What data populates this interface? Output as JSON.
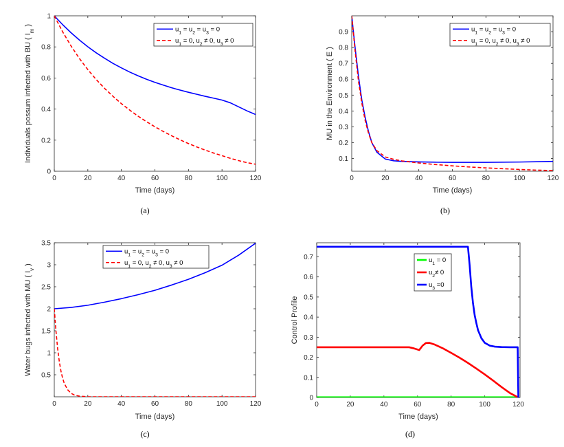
{
  "chart_data": [
    {
      "panel": "a",
      "type": "line",
      "caption": "(a)",
      "xlabel": "Time (days)",
      "ylabel": "Individuals possum infected with BU ( I",
      "ylabel_sub": "m",
      "ylabel_close": " )",
      "xlim": [
        0,
        120
      ],
      "ylim": [
        0,
        1
      ],
      "xticks": [
        0,
        20,
        40,
        60,
        80,
        100,
        120
      ],
      "yticks": [
        0,
        0.2,
        0.4,
        0.6,
        0.8,
        1
      ],
      "ytick_labels": [
        "0",
        "0.2",
        "0.4",
        "0.6",
        "0.8",
        "1"
      ],
      "legend_position": "top-right",
      "series": [
        {
          "name": "u1 = u2 = u3 = 0",
          "legend": [
            {
              "t": "u"
            },
            {
              "s": "1"
            },
            {
              "t": " = u"
            },
            {
              "s": "2"
            },
            {
              "t": " = u"
            },
            {
              "s": "3"
            },
            {
              "t": " = 0"
            }
          ],
          "color": "#0000ff",
          "dash": false,
          "x": [
            0,
            5,
            10,
            15,
            20,
            25,
            30,
            35,
            40,
            45,
            50,
            55,
            60,
            65,
            70,
            75,
            80,
            85,
            90,
            95,
            100,
            105,
            110,
            115,
            120
          ],
          "y": [
            1.0,
            0.943,
            0.891,
            0.844,
            0.801,
            0.762,
            0.727,
            0.694,
            0.665,
            0.638,
            0.614,
            0.592,
            0.572,
            0.554,
            0.537,
            0.522,
            0.508,
            0.495,
            0.482,
            0.47,
            0.458,
            0.44,
            0.414,
            0.388,
            0.365
          ]
        },
        {
          "name": "u1 = 0, u2 ≠ 0, u3 ≠ 0",
          "legend": [
            {
              "t": "u"
            },
            {
              "s": "1"
            },
            {
              "t": " = 0, u"
            },
            {
              "s": "2"
            },
            {
              "t": " ≠  0, u"
            },
            {
              "s": "3"
            },
            {
              "t": " ≠ 0"
            }
          ],
          "color": "#ff0000",
          "dash": true,
          "x": [
            0,
            5,
            10,
            15,
            20,
            25,
            30,
            35,
            40,
            45,
            50,
            55,
            60,
            65,
            70,
            75,
            80,
            85,
            90,
            95,
            100,
            105,
            110,
            115,
            120
          ],
          "y": [
            1.0,
            0.897,
            0.806,
            0.725,
            0.654,
            0.59,
            0.533,
            0.482,
            0.435,
            0.393,
            0.354,
            0.319,
            0.286,
            0.256,
            0.228,
            0.202,
            0.178,
            0.156,
            0.136,
            0.117,
            0.1,
            0.083,
            0.068,
            0.055,
            0.045
          ]
        }
      ]
    },
    {
      "panel": "b",
      "type": "line",
      "caption": "(b)",
      "xlabel": "Time (days)",
      "ylabel": "MU in the Environment ( E )",
      "ylabel_sub": "",
      "ylabel_close": "",
      "xlim": [
        0,
        120
      ],
      "ylim": [
        0.02,
        1.0
      ],
      "xticks": [
        0,
        20,
        40,
        60,
        80,
        100,
        120
      ],
      "yticks": [
        0.1,
        0.2,
        0.3,
        0.4,
        0.5,
        0.6,
        0.7,
        0.8,
        0.9
      ],
      "ytick_labels": [
        "0.1",
        "0.2",
        "0.3",
        "0.4",
        "0.5",
        "0.6",
        "0.7",
        "0.8",
        "0.9"
      ],
      "legend_position": "top-right",
      "series": [
        {
          "name": "u1 = u2 = u3 = 0",
          "legend": [
            {
              "t": "u"
            },
            {
              "s": "1"
            },
            {
              "t": " = u"
            },
            {
              "s": "2"
            },
            {
              "t": " = u"
            },
            {
              "s": "3"
            },
            {
              "t": " = 0"
            }
          ],
          "color": "#0000ff",
          "dash": false,
          "x": [
            0,
            2,
            4,
            6,
            8,
            10,
            12,
            15,
            20,
            25,
            30,
            40,
            50,
            60,
            70,
            80,
            90,
            100,
            110,
            120
          ],
          "y": [
            1.0,
            0.8,
            0.62,
            0.47,
            0.36,
            0.27,
            0.2,
            0.14,
            0.097,
            0.086,
            0.082,
            0.079,
            0.077,
            0.076,
            0.076,
            0.076,
            0.077,
            0.078,
            0.08,
            0.082
          ]
        },
        {
          "name": "u1 = 0, u2 ≠ 0, u3 ≠ 0",
          "legend": [
            {
              "t": "u"
            },
            {
              "s": "1"
            },
            {
              "t": " = 0, u"
            },
            {
              "s": "2"
            },
            {
              "t": " ≠  0, u"
            },
            {
              "s": "3"
            },
            {
              "t": " ≠ 0"
            }
          ],
          "color": "#ff0000",
          "dash": true,
          "x": [
            0,
            2,
            4,
            6,
            8,
            10,
            12,
            15,
            20,
            25,
            30,
            40,
            50,
            60,
            70,
            80,
            90,
            100,
            110,
            120
          ],
          "y": [
            1.0,
            0.78,
            0.59,
            0.45,
            0.34,
            0.26,
            0.2,
            0.15,
            0.11,
            0.095,
            0.085,
            0.072,
            0.062,
            0.054,
            0.047,
            0.041,
            0.036,
            0.031,
            0.027,
            0.024
          ]
        }
      ]
    },
    {
      "panel": "c",
      "type": "line",
      "caption": "(c)",
      "xlabel": "Time (days)",
      "ylabel": "Water bugs infected with MU ( I",
      "ylabel_sub": "v",
      "ylabel_close": " )",
      "xlim": [
        0,
        120
      ],
      "ylim": [
        0,
        3.5
      ],
      "xticks": [
        0,
        20,
        40,
        60,
        80,
        100,
        120
      ],
      "yticks": [
        0.5,
        1,
        1.5,
        2,
        2.5,
        3,
        3.5
      ],
      "ytick_labels": [
        "0.5",
        "1",
        "1.5",
        "2",
        "2.5",
        "3",
        "3.5"
      ],
      "legend_position": "top-left",
      "series": [
        {
          "name": "u1 = u2 = u3 = 0",
          "legend": [
            {
              "t": "u"
            },
            {
              "s": "1"
            },
            {
              "t": " = u"
            },
            {
              "s": "2"
            },
            {
              "t": " = u"
            },
            {
              "s": "3"
            },
            {
              "t": " = 0"
            }
          ],
          "color": "#0000ff",
          "dash": false,
          "x": [
            0,
            10,
            20,
            30,
            40,
            50,
            60,
            70,
            80,
            90,
            100,
            110,
            120
          ],
          "y": [
            2.0,
            2.03,
            2.08,
            2.15,
            2.23,
            2.32,
            2.42,
            2.54,
            2.67,
            2.82,
            2.99,
            3.22,
            3.49
          ]
        },
        {
          "name": "u1 = 0, u2 ≠ 0, u3 ≠ 0",
          "legend": [
            {
              "t": "u"
            },
            {
              "s": "1"
            },
            {
              "t": " = 0, u"
            },
            {
              "s": "2"
            },
            {
              "t": " ≠  0, u"
            },
            {
              "s": "3"
            },
            {
              "t": " ≠ 0"
            }
          ],
          "color": "#ff0000",
          "dash": true,
          "x": [
            0,
            1,
            2,
            3,
            4,
            5,
            6,
            8,
            10,
            12,
            15,
            20,
            30,
            60,
            90,
            120
          ],
          "y": [
            2.0,
            1.5,
            1.1,
            0.8,
            0.58,
            0.42,
            0.3,
            0.16,
            0.08,
            0.04,
            0.015,
            0.0,
            0.0,
            0.0,
            0.0,
            0.0
          ]
        }
      ]
    },
    {
      "panel": "d",
      "type": "line",
      "caption": "(d)",
      "xlabel": "Time (days)",
      "ylabel": "Control Profile",
      "ylabel_sub": "",
      "ylabel_close": "",
      "xlim": [
        0,
        121
      ],
      "ylim": [
        0,
        0.77
      ],
      "xticks": [
        0,
        20,
        40,
        60,
        80,
        100,
        120
      ],
      "yticks": [
        0,
        0.1,
        0.2,
        0.3,
        0.4,
        0.5,
        0.6,
        0.7
      ],
      "ytick_labels": [
        "0",
        "0.1",
        "0.2",
        "0.3",
        "0.4",
        "0.5",
        "0.6",
        "0.7"
      ],
      "legend_position": "top-right",
      "series": [
        {
          "name": "u1 = 0",
          "legend": [
            {
              "t": "u"
            },
            {
              "s": "1"
            },
            {
              "t": " = 0"
            }
          ],
          "color": "#00ff00",
          "dash": false,
          "width": 2.6,
          "x": [
            0,
            120
          ],
          "y": [
            0.001,
            0.001
          ]
        },
        {
          "name": "u2 ≠ 0",
          "legend": [
            {
              "t": "u"
            },
            {
              "s": "2"
            },
            {
              "t": "≠  0"
            }
          ],
          "color": "#ff0000",
          "dash": false,
          "width": 2.6,
          "x": [
            0,
            55,
            58,
            61,
            63,
            65,
            67,
            70,
            75,
            80,
            85,
            90,
            95,
            100,
            105,
            110,
            115,
            120
          ],
          "y": [
            0.25,
            0.25,
            0.244,
            0.236,
            0.258,
            0.271,
            0.272,
            0.264,
            0.245,
            0.222,
            0.198,
            0.172,
            0.144,
            0.115,
            0.084,
            0.052,
            0.022,
            0.0
          ]
        },
        {
          "name": "u3 = 0",
          "legend": [
            {
              "t": "u"
            },
            {
              "s": "3"
            },
            {
              "t": " =0"
            }
          ],
          "color": "#0000ff",
          "dash": false,
          "width": 2.6,
          "x": [
            0,
            90,
            91,
            92,
            93,
            94,
            95,
            96,
            98,
            100,
            103,
            106,
            110,
            115,
            119.6,
            119.8,
            120
          ],
          "y": [
            0.75,
            0.75,
            0.66,
            0.55,
            0.47,
            0.41,
            0.37,
            0.335,
            0.295,
            0.272,
            0.258,
            0.253,
            0.251,
            0.25,
            0.25,
            0.12,
            0.0
          ]
        }
      ]
    }
  ]
}
